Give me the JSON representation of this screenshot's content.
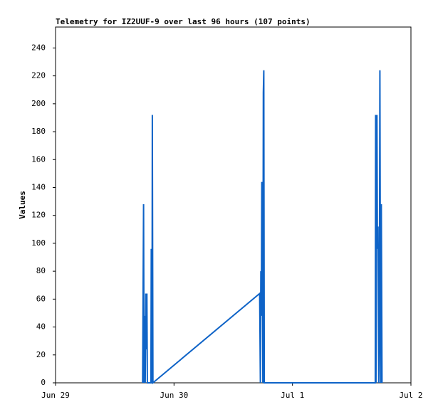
{
  "chart_data": {
    "type": "line",
    "title": "Telemetry for IZ2UUF-9 over last 96 hours (107 points)",
    "y_label": "Values",
    "xlim": [
      0,
      3
    ],
    "xticks": [
      {
        "value": 0,
        "label": "Jun 29"
      },
      {
        "value": 1,
        "label": "Jun 30"
      },
      {
        "value": 2,
        "label": "Jul 1"
      },
      {
        "value": 3,
        "label": "Jul 2"
      }
    ],
    "ylim": [
      0,
      255
    ],
    "yticks": [
      0,
      20,
      40,
      60,
      80,
      100,
      120,
      140,
      160,
      180,
      200,
      220,
      240
    ],
    "series": [
      {
        "color": "#0e63c7",
        "x": [
          0.735,
          0.74,
          0.743,
          0.747,
          0.752,
          0.757,
          0.762,
          0.766,
          0.771,
          0.775,
          0.805,
          0.808,
          0.814,
          0.817,
          0.822,
          1.723,
          1.729,
          1.733,
          1.737,
          1.741,
          1.745,
          1.75,
          1.754,
          1.758,
          1.762,
          1.768,
          1.785,
          1.79,
          1.795,
          2.699,
          2.702,
          2.705,
          2.709,
          2.713,
          2.717,
          2.722,
          2.728,
          2.733,
          2.738,
          2.744,
          2.75,
          2.756
        ],
        "values": [
          0,
          80,
          128,
          0,
          48,
          0,
          64,
          24,
          64,
          0,
          0,
          96,
          0,
          192,
          0,
          64,
          0,
          80,
          48,
          144,
          104,
          0,
          208,
          224,
          0,
          0,
          0,
          0,
          0,
          0,
          192,
          0,
          128,
          192,
          96,
          112,
          0,
          32,
          224,
          0,
          128,
          0
        ]
      }
    ]
  }
}
